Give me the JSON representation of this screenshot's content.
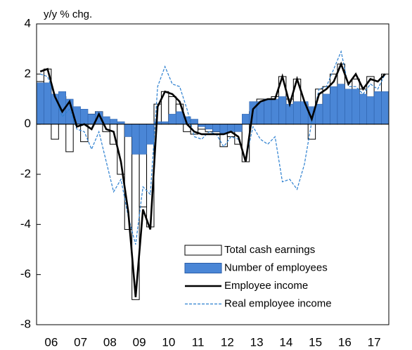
{
  "chart_data": {
    "type": "bar-line",
    "y_axis_label": "y/y % chg.",
    "categories": [
      null,
      "06",
      null,
      null,
      null,
      "07",
      null,
      null,
      null,
      "08",
      null,
      null,
      null,
      "09",
      null,
      null,
      null,
      "10",
      null,
      null,
      null,
      "11",
      null,
      null,
      null,
      "12",
      null,
      null,
      null,
      "13",
      null,
      null,
      null,
      "14",
      null,
      null,
      null,
      "15",
      null,
      null,
      null,
      "16",
      null,
      null,
      null,
      "17",
      null,
      null
    ],
    "series": [
      {
        "name": "Total cash earnings",
        "kind": "bar",
        "color": "#ffffff",
        "values": [
          1.7,
          2.2,
          -0.6,
          1.1,
          -1.1,
          0.1,
          -0.7,
          0.4,
          0.5,
          -0.3,
          -0.8,
          -2.0,
          -4.2,
          -7.0,
          -3.3,
          -4.1,
          0.8,
          1.3,
          1.1,
          0.8,
          -0.3,
          -0.4,
          -0.2,
          -0.3,
          -0.3,
          -0.9,
          -0.5,
          -0.8,
          -1.5,
          0.5,
          1.0,
          1.0,
          1.1,
          1.9,
          1.0,
          1.8,
          0.8,
          -0.6,
          1.4,
          1.5,
          2.0,
          2.4,
          1.3,
          1.8,
          1.4,
          1.9,
          1.0,
          2.0
        ]
      },
      {
        "name": "Number of employees",
        "kind": "bar",
        "color": "#4a86d6",
        "values": [
          1.65,
          1.65,
          1.2,
          1.3,
          1.0,
          0.7,
          0.6,
          0.4,
          0.5,
          0.3,
          0.2,
          0.1,
          -0.5,
          -1.2,
          -1.2,
          -0.8,
          0.1,
          0.1,
          0.4,
          0.5,
          0.3,
          0.2,
          -0.1,
          -0.2,
          -0.3,
          -0.4,
          -0.3,
          -0.3,
          0.4,
          0.9,
          0.9,
          1.0,
          1.0,
          1.1,
          0.8,
          0.9,
          0.9,
          0.7,
          0.8,
          1.2,
          1.5,
          1.6,
          1.4,
          1.4,
          1.2,
          1.1,
          1.3,
          1.3
        ]
      },
      {
        "name": "Employee income",
        "kind": "line",
        "color": "#000000",
        "values": [
          2.1,
          2.2,
          1.1,
          0.5,
          0.9,
          -0.1,
          0.0,
          -0.2,
          0.4,
          -0.2,
          -0.3,
          -1.5,
          -3.5,
          -6.9,
          -3.4,
          -4.2,
          0.7,
          1.3,
          1.2,
          0.9,
          0.0,
          -0.3,
          -0.4,
          -0.4,
          -0.4,
          -0.4,
          -0.3,
          -0.5,
          -1.5,
          0.6,
          0.9,
          1.0,
          1.0,
          1.9,
          0.8,
          1.8,
          0.9,
          0.2,
          1.2,
          1.4,
          1.7,
          2.4,
          1.6,
          2.0,
          1.4,
          1.8,
          1.7,
          2.0
        ]
      },
      {
        "name": "Real employee income",
        "kind": "dashed-line",
        "color": "#2b7fd0",
        "values": [
          2.0,
          1.9,
          1.1,
          0.3,
          0.6,
          -0.2,
          -0.3,
          -1.0,
          -0.3,
          -1.5,
          -2.7,
          -2.2,
          -3.7,
          -4.8,
          -2.5,
          -2.8,
          1.5,
          2.3,
          1.6,
          1.5,
          0.6,
          -0.5,
          -0.6,
          -0.3,
          -0.4,
          -0.9,
          -0.5,
          -0.6,
          -1.4,
          -0.1,
          -0.6,
          -0.8,
          -0.5,
          -2.3,
          -2.2,
          -2.6,
          -1.6,
          0.1,
          1.4,
          1.5,
          2.2,
          2.9,
          1.5,
          1.5,
          1.2,
          1.6,
          1.4,
          2.0
        ]
      }
    ],
    "ylim": [
      -8,
      4
    ],
    "yticks": [
      -8,
      -6,
      -4,
      -2,
      0,
      2,
      4
    ],
    "legend": "lower right"
  }
}
